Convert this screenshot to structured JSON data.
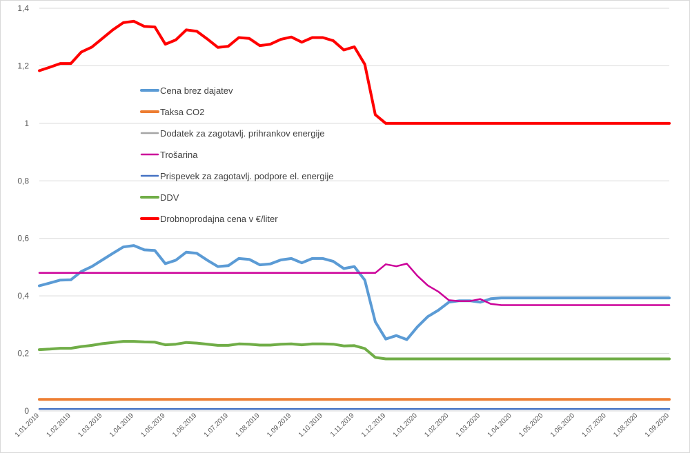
{
  "chart_data": {
    "type": "line",
    "title": "",
    "xlabel": "",
    "ylabel": "",
    "ylim": [
      0,
      1.4
    ],
    "yticks": [
      "0",
      "0,2",
      "0,4",
      "0,6",
      "0,8",
      "1",
      "1,2",
      "1,4"
    ],
    "ytick_values": [
      0,
      0.2,
      0.4,
      0.6,
      0.8,
      1.0,
      1.2,
      1.4
    ],
    "grid": true,
    "legend_position": "center-left",
    "x_labels": [
      "1.01.2019",
      "1.02.2019",
      "1.03.2019",
      "1.04.2019",
      "1.05.2019",
      "1.06.2019",
      "1.07.2019",
      "1.08.2019",
      "1.09.2019",
      "1.10.2019",
      "1.11.2019",
      "1.12.2019",
      "1.01.2020",
      "1.02.2020",
      "1.03.2020",
      "1.04.2020",
      "1.05.2020",
      "1.06.2020",
      "1.07.2020",
      "1.08.2020",
      "1.09.2020"
    ],
    "num_points": 61,
    "series": [
      {
        "name": "Cena brez dajatev",
        "color": "#5b9bd5",
        "width": 4,
        "values": [
          0.435,
          0.445,
          0.455,
          0.456,
          0.485,
          0.502,
          0.525,
          0.548,
          0.57,
          0.575,
          0.56,
          0.558,
          0.512,
          0.524,
          0.552,
          0.548,
          0.524,
          0.502,
          0.505,
          0.53,
          0.527,
          0.508,
          0.511,
          0.525,
          0.53,
          0.515,
          0.53,
          0.53,
          0.52,
          0.495,
          0.502,
          0.455,
          0.31,
          0.25,
          0.262,
          0.248,
          0.292,
          0.328,
          0.35,
          0.378,
          0.383,
          0.383,
          0.378,
          0.39,
          0.393,
          0.393,
          0.393,
          0.393,
          0.393,
          0.393,
          0.393,
          0.393,
          0.393,
          0.393,
          0.393,
          0.393,
          0.393,
          0.393,
          0.393,
          0.393,
          0.393
        ]
      },
      {
        "name": "Taksa CO2",
        "color": "#ed7d31",
        "width": 4,
        "values": [
          0.04,
          0.04,
          0.04,
          0.04,
          0.04,
          0.04,
          0.04,
          0.04,
          0.04,
          0.04,
          0.04,
          0.04,
          0.04,
          0.04,
          0.04,
          0.04,
          0.04,
          0.04,
          0.04,
          0.04,
          0.04,
          0.04,
          0.04,
          0.04,
          0.04,
          0.04,
          0.04,
          0.04,
          0.04,
          0.04,
          0.04,
          0.04,
          0.04,
          0.04,
          0.04,
          0.04,
          0.04,
          0.04,
          0.04,
          0.04,
          0.04,
          0.04,
          0.04,
          0.04,
          0.04,
          0.04,
          0.04,
          0.04,
          0.04,
          0.04,
          0.04,
          0.04,
          0.04,
          0.04,
          0.04,
          0.04,
          0.04,
          0.04,
          0.04,
          0.04,
          0.04
        ]
      },
      {
        "name": "Dodatek za zagotavlj. prihrankov energije",
        "color": "#a5a5a5",
        "width": 2,
        "values": [
          0.007,
          0.007,
          0.007,
          0.007,
          0.007,
          0.007,
          0.007,
          0.007,
          0.007,
          0.007,
          0.007,
          0.007,
          0.007,
          0.007,
          0.007,
          0.007,
          0.007,
          0.007,
          0.007,
          0.007,
          0.007,
          0.007,
          0.007,
          0.007,
          0.007,
          0.007,
          0.007,
          0.007,
          0.007,
          0.007,
          0.007,
          0.007,
          0.007,
          0.007,
          0.007,
          0.007,
          0.007,
          0.007,
          0.007,
          0.007,
          0.007,
          0.007,
          0.007,
          0.007,
          0.007,
          0.007,
          0.007,
          0.007,
          0.007,
          0.007,
          0.007,
          0.007,
          0.007,
          0.007,
          0.007,
          0.007,
          0.007,
          0.007,
          0.007,
          0.007,
          0.007
        ]
      },
      {
        "name": "Trošarina",
        "color": "#cc0099",
        "width": 2.5,
        "values": [
          0.48,
          0.48,
          0.48,
          0.48,
          0.48,
          0.48,
          0.48,
          0.48,
          0.48,
          0.48,
          0.48,
          0.48,
          0.48,
          0.48,
          0.48,
          0.48,
          0.48,
          0.48,
          0.48,
          0.48,
          0.48,
          0.48,
          0.48,
          0.48,
          0.48,
          0.48,
          0.48,
          0.48,
          0.48,
          0.48,
          0.48,
          0.48,
          0.48,
          0.51,
          0.503,
          0.512,
          0.47,
          0.436,
          0.415,
          0.385,
          0.382,
          0.382,
          0.389,
          0.372,
          0.368,
          0.368,
          0.368,
          0.368,
          0.368,
          0.368,
          0.368,
          0.368,
          0.368,
          0.368,
          0.368,
          0.368,
          0.368,
          0.368,
          0.368,
          0.368,
          0.368
        ]
      },
      {
        "name": "Prispevek za zagotavlj. podpore  el. energije",
        "color": "#4472c4",
        "width": 2.5,
        "values": [
          0.007,
          0.007,
          0.007,
          0.007,
          0.007,
          0.007,
          0.007,
          0.007,
          0.007,
          0.007,
          0.007,
          0.007,
          0.007,
          0.007,
          0.007,
          0.007,
          0.007,
          0.007,
          0.007,
          0.007,
          0.007,
          0.007,
          0.007,
          0.007,
          0.007,
          0.007,
          0.007,
          0.007,
          0.007,
          0.007,
          0.007,
          0.007,
          0.007,
          0.007,
          0.007,
          0.007,
          0.007,
          0.007,
          0.007,
          0.007,
          0.007,
          0.007,
          0.007,
          0.007,
          0.007,
          0.007,
          0.007,
          0.007,
          0.007,
          0.007,
          0.007,
          0.007,
          0.007,
          0.007,
          0.007,
          0.007,
          0.007,
          0.007,
          0.007,
          0.007,
          0.007
        ]
      },
      {
        "name": "DDV",
        "color": "#70ad47",
        "width": 4,
        "values": [
          0.213,
          0.215,
          0.218,
          0.218,
          0.224,
          0.228,
          0.234,
          0.238,
          0.242,
          0.242,
          0.24,
          0.239,
          0.23,
          0.232,
          0.238,
          0.236,
          0.232,
          0.228,
          0.228,
          0.233,
          0.232,
          0.229,
          0.229,
          0.232,
          0.233,
          0.23,
          0.233,
          0.233,
          0.232,
          0.226,
          0.227,
          0.217,
          0.186,
          0.181,
          0.181,
          0.181,
          0.181,
          0.181,
          0.181,
          0.181,
          0.181,
          0.181,
          0.181,
          0.181,
          0.181,
          0.181,
          0.181,
          0.181,
          0.181,
          0.181,
          0.181,
          0.181,
          0.181,
          0.181,
          0.181,
          0.181,
          0.181,
          0.181,
          0.181,
          0.181,
          0.181
        ]
      },
      {
        "name": "Drobnoprodajna cena v €/liter",
        "color": "#ff0000",
        "width": 4,
        "values": [
          1.183,
          1.195,
          1.208,
          1.208,
          1.248,
          1.265,
          1.295,
          1.325,
          1.35,
          1.355,
          1.337,
          1.335,
          1.275,
          1.29,
          1.325,
          1.32,
          1.293,
          1.264,
          1.268,
          1.298,
          1.295,
          1.27,
          1.275,
          1.292,
          1.3,
          1.282,
          1.298,
          1.298,
          1.287,
          1.255,
          1.266,
          1.205,
          1.03,
          1.0,
          1.0,
          1.0,
          1.0,
          1.0,
          1.0,
          1.0,
          1.0,
          1.0,
          1.0,
          1.0,
          1.0,
          1.0,
          1.0,
          1.0,
          1.0,
          1.0,
          1.0,
          1.0,
          1.0,
          1.0,
          1.0,
          1.0,
          1.0,
          1.0,
          1.0,
          1.0,
          1.0
        ]
      }
    ]
  }
}
